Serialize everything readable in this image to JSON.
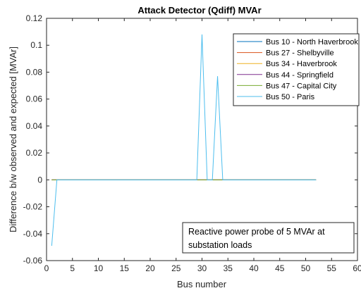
{
  "chart_data": {
    "type": "line",
    "title": "Attack Detector (Qdiff) MVAr",
    "xlabel": "Bus number",
    "ylabel": "Difference b/w observed and expected [MVAr]",
    "xlim": [
      0,
      60
    ],
    "ylim": [
      -0.06,
      0.12
    ],
    "xticks": [
      0,
      5,
      10,
      15,
      20,
      25,
      30,
      35,
      40,
      45,
      50,
      55,
      60
    ],
    "xtick_labels": [
      "0",
      "5",
      "10",
      "15",
      "20",
      "25",
      "30",
      "35",
      "40",
      "45",
      "50",
      "55",
      "60"
    ],
    "yticks": [
      -0.06,
      -0.04,
      -0.02,
      0,
      0.02,
      0.04,
      0.06,
      0.08,
      0.1,
      0.12
    ],
    "ytick_labels": [
      "-0.06",
      "-0.04",
      "-0.02",
      "0",
      "0.02",
      "0.04",
      "0.06",
      "0.08",
      "0.1",
      "0.12"
    ],
    "grid": false,
    "legend_position": "top-right",
    "series": [
      {
        "name": "Bus 10 - North Haverbrook",
        "color": "#0072bd",
        "x": [
          1,
          2,
          29,
          30,
          31,
          32,
          33,
          34,
          52
        ],
        "y": [
          0,
          0,
          0,
          0,
          0,
          0,
          0,
          0,
          0
        ]
      },
      {
        "name": "Bus 27 - Shelbyville",
        "color": "#d95319",
        "x": [
          1,
          2,
          29,
          30,
          31,
          32,
          33,
          34,
          52
        ],
        "y": [
          0,
          0,
          0,
          0,
          0,
          0,
          0,
          0,
          0
        ]
      },
      {
        "name": "Bus 34 - Haverbrook",
        "color": "#edb120",
        "x": [
          1,
          2,
          29,
          30,
          31,
          32,
          33,
          34,
          52
        ],
        "y": [
          0,
          0,
          0,
          0,
          0,
          0,
          0,
          0,
          0
        ]
      },
      {
        "name": "Bus 44 - Springfield",
        "color": "#7e2f8e",
        "x": [
          1,
          2,
          29,
          30,
          31,
          32,
          33,
          34,
          52
        ],
        "y": [
          0,
          0,
          0,
          0,
          0,
          0,
          0,
          0,
          0
        ]
      },
      {
        "name": "Bus 47 - Capital City",
        "color": "#77ac30",
        "x": [
          1,
          2,
          29,
          30,
          31,
          32,
          33,
          34,
          52
        ],
        "y": [
          0,
          0,
          0,
          0,
          0,
          0,
          0,
          0,
          0
        ]
      },
      {
        "name": "Bus 50 - Paris",
        "color": "#4dbeee",
        "x": [
          1,
          2,
          29,
          30,
          31,
          32,
          33,
          34,
          52
        ],
        "y": [
          -0.049,
          0,
          0,
          0.108,
          0,
          0,
          0.077,
          0,
          0
        ]
      }
    ],
    "annotation": {
      "lines": [
        "Reactive power probe of 5 MVAr at",
        "substation loads"
      ],
      "position": "bottom-right"
    }
  }
}
